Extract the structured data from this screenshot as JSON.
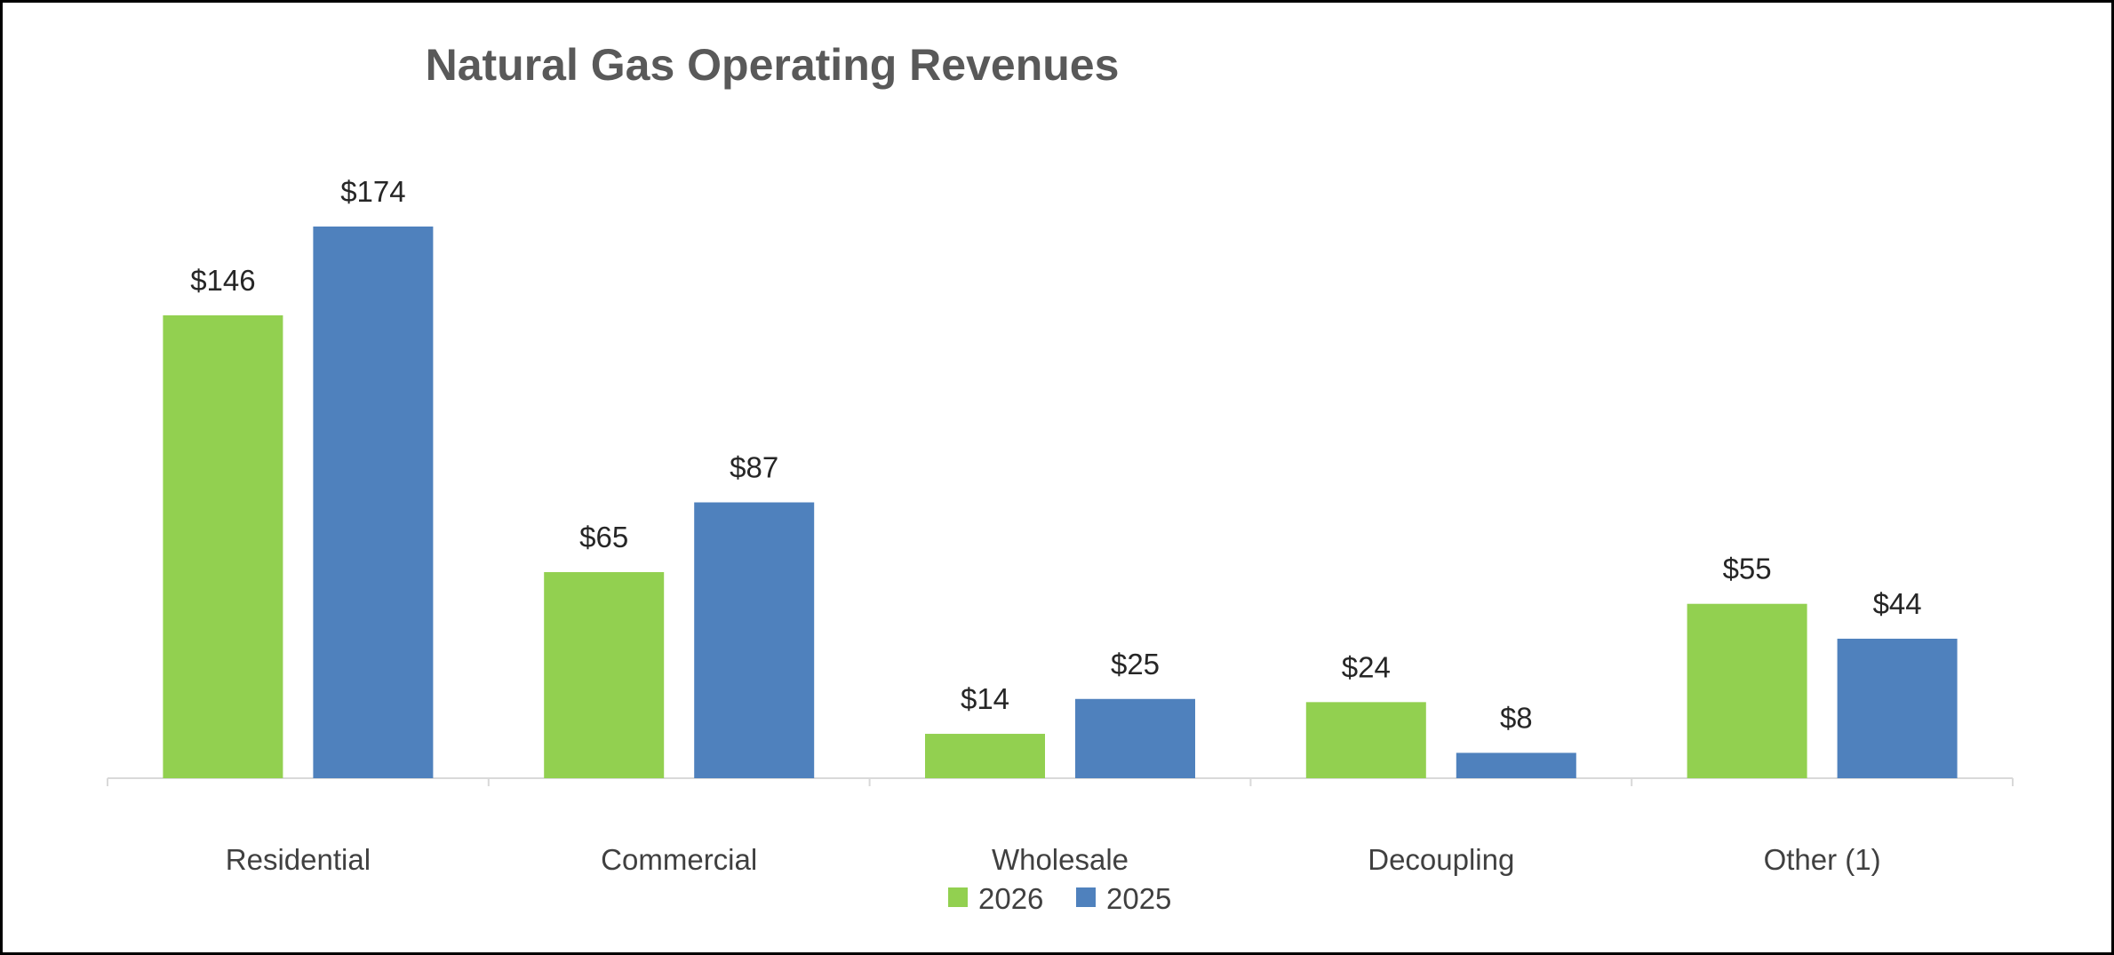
{
  "chart_data": {
    "type": "bar",
    "title": "Natural Gas Operating Revenues",
    "categories": [
      "Residential",
      "Commercial",
      "Wholesale",
      "Decoupling",
      "Other (1)"
    ],
    "series": [
      {
        "name": "2026",
        "color": "#92d050",
        "values": [
          146,
          65,
          14,
          24,
          55
        ],
        "labels": [
          "$146",
          "$65",
          "$14",
          "$24",
          "$55"
        ]
      },
      {
        "name": "2025",
        "color": "#4f81bd",
        "values": [
          174,
          87,
          25,
          8,
          44
        ],
        "labels": [
          "$174",
          "$87",
          "$25",
          "$8",
          "$44"
        ]
      }
    ],
    "ylim": [
      0,
      174
    ],
    "grid": false,
    "legend_position": "bottom",
    "axis_color": "#d9d9d9"
  }
}
